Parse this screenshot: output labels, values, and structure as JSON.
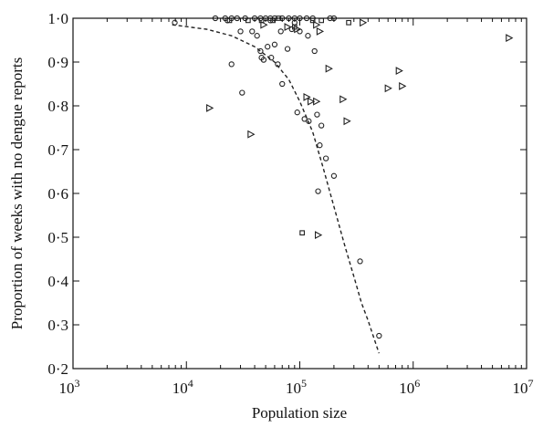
{
  "chart_data": {
    "type": "scatter",
    "title": "",
    "xlabel": "Population size",
    "ylabel": "Proportion of weeks with no dengue reports",
    "xscale": "log",
    "xlim": [
      1000,
      10000000
    ],
    "ylim": [
      0.2,
      1.0
    ],
    "x_ticks": [
      1000,
      10000,
      100000,
      1000000,
      10000000
    ],
    "x_tick_labels": [
      {
        "base": "10",
        "exp": "3"
      },
      {
        "base": "10",
        "exp": "4"
      },
      {
        "base": "10",
        "exp": "5"
      },
      {
        "base": "10",
        "exp": "6"
      },
      {
        "base": "10",
        "exp": "7"
      }
    ],
    "y_ticks": [
      0.2,
      0.3,
      0.4,
      0.5,
      0.6,
      0.7,
      0.8,
      0.9,
      1.0
    ],
    "y_tick_labels": [
      "0·2",
      "0·3",
      "0·4",
      "0·5",
      "0·6",
      "0·7",
      "0·8",
      "0·9",
      "1·0"
    ],
    "grid": false,
    "legend": "none",
    "series": [
      {
        "marker": "circle",
        "points": [
          [
            7900,
            0.99
          ],
          [
            18000,
            1.0
          ],
          [
            22000,
            1.0
          ],
          [
            25000,
            1.0
          ],
          [
            28000,
            1.0
          ],
          [
            33000,
            1.0
          ],
          [
            40000,
            1.0
          ],
          [
            45000,
            1.0
          ],
          [
            50000,
            1.0
          ],
          [
            55000,
            1.0
          ],
          [
            60000,
            1.0
          ],
          [
            70000,
            1.0
          ],
          [
            80000,
            1.0
          ],
          [
            90000,
            1.0
          ],
          [
            100000,
            1.0
          ],
          [
            115000,
            1.0
          ],
          [
            130000,
            1.0
          ],
          [
            185000,
            1.0
          ],
          [
            200000,
            1.0
          ],
          [
            23000,
            0.995
          ],
          [
            55000,
            0.995
          ],
          [
            25000,
            0.895
          ],
          [
            30000,
            0.97
          ],
          [
            31000,
            0.83
          ],
          [
            38000,
            0.97
          ],
          [
            42000,
            0.96
          ],
          [
            45000,
            0.925
          ],
          [
            46000,
            0.91
          ],
          [
            48000,
            0.905
          ],
          [
            52000,
            0.935
          ],
          [
            56000,
            0.91
          ],
          [
            60000,
            0.94
          ],
          [
            64000,
            0.895
          ],
          [
            68000,
            0.97
          ],
          [
            70000,
            0.85
          ],
          [
            78000,
            0.93
          ],
          [
            85000,
            0.975
          ],
          [
            90000,
            0.99
          ],
          [
            95000,
            0.785
          ],
          [
            100000,
            0.97
          ],
          [
            110000,
            0.77
          ],
          [
            118000,
            0.96
          ],
          [
            120000,
            0.765
          ],
          [
            135000,
            0.925
          ],
          [
            142000,
            0.78
          ],
          [
            145000,
            0.605
          ],
          [
            150000,
            0.71
          ],
          [
            155000,
            0.755
          ],
          [
            170000,
            0.68
          ],
          [
            200000,
            0.64
          ],
          [
            340000,
            0.445
          ],
          [
            500000,
            0.275
          ]
        ]
      },
      {
        "marker": "square",
        "points": [
          [
            24000,
            0.995
          ],
          [
            58000,
            0.995
          ],
          [
            65000,
            1.0
          ],
          [
            105000,
            0.51
          ],
          [
            155000,
            0.995
          ],
          [
            270000,
            0.99
          ],
          [
            35000,
            0.995
          ],
          [
            90000,
            0.98
          ],
          [
            46000,
            0.995
          ],
          [
            130000,
            0.995
          ]
        ]
      },
      {
        "marker": "triangle-right",
        "points": [
          [
            16000,
            0.795
          ],
          [
            37000,
            0.735
          ],
          [
            48000,
            0.985
          ],
          [
            78000,
            0.98
          ],
          [
            95000,
            0.975
          ],
          [
            115000,
            0.82
          ],
          [
            125000,
            0.81
          ],
          [
            140000,
            0.81
          ],
          [
            145000,
            0.505
          ],
          [
            150000,
            0.97
          ],
          [
            180000,
            0.885
          ],
          [
            240000,
            0.815
          ],
          [
            260000,
            0.765
          ],
          [
            360000,
            0.99
          ],
          [
            600000,
            0.84
          ],
          [
            750000,
            0.88
          ],
          [
            800000,
            0.845
          ],
          [
            7000000,
            0.955
          ],
          [
            140000,
            0.985
          ]
        ]
      }
    ],
    "fit_curve": {
      "style": "dashed",
      "points": [
        [
          7500,
          0.985
        ],
        [
          15000,
          0.975
        ],
        [
          25000,
          0.96
        ],
        [
          40000,
          0.935
        ],
        [
          60000,
          0.9
        ],
        [
          80000,
          0.86
        ],
        [
          100000,
          0.81
        ],
        [
          130000,
          0.74
        ],
        [
          160000,
          0.66
        ],
        [
          200000,
          0.57
        ],
        [
          250000,
          0.48
        ],
        [
          300000,
          0.41
        ],
        [
          350000,
          0.35
        ],
        [
          400000,
          0.31
        ],
        [
          450000,
          0.27
        ],
        [
          500000,
          0.235
        ]
      ]
    }
  }
}
